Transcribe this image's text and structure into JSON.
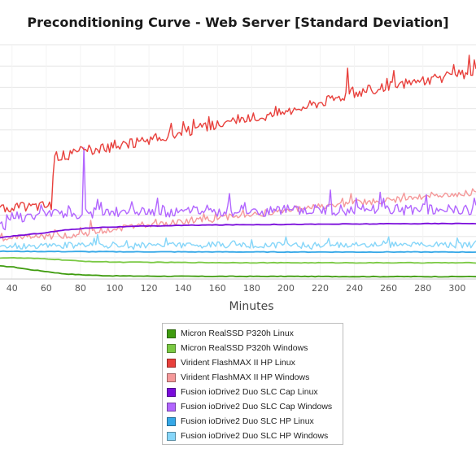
{
  "chart_data": {
    "type": "line",
    "title": "Preconditioning Curve - Web Server [Standard Deviation]",
    "xlabel": "Minutes",
    "ylabel": "",
    "xlim": [
      33,
      311
    ],
    "ylim": [
      0,
      100
    ],
    "x_ticks": [
      40,
      60,
      80,
      100,
      120,
      140,
      160,
      180,
      200,
      220,
      240,
      260,
      280,
      300
    ],
    "grid": true,
    "legend_position": "bottom",
    "series": [
      {
        "name": "Micron RealSSD P320h Linux",
        "color": "#3f9c0f",
        "style": "smooth",
        "x": [
          33,
          40,
          50,
          60,
          70,
          80,
          90,
          100,
          120,
          150,
          200,
          250,
          311
        ],
        "y": [
          5.5,
          5.2,
          4.0,
          3.2,
          2.2,
          1.8,
          1.5,
          1.3,
          1.2,
          1.1,
          1.1,
          1.0,
          1.0
        ]
      },
      {
        "name": "Micron RealSSD P320h Windows",
        "color": "#7ac943",
        "style": "smooth",
        "x": [
          33,
          40,
          60,
          80,
          100,
          150,
          200,
          250,
          311
        ],
        "y": [
          9.0,
          9.0,
          8.6,
          7.6,
          7.2,
          7.0,
          6.9,
          6.9,
          6.9
        ]
      },
      {
        "name": "Virident FlashMAX II HP Linux",
        "color": "#e8403c",
        "style": "noisy",
        "x": [
          33,
          40,
          50,
          60,
          63,
          65,
          70,
          80,
          90,
          100,
          120,
          140,
          160,
          180,
          200,
          220,
          240,
          260,
          280,
          300,
          311
        ],
        "y": [
          30.5,
          30.5,
          31.0,
          31.5,
          31.5,
          52.0,
          53.0,
          54.5,
          55.5,
          56.5,
          59.5,
          62.5,
          66.0,
          68.5,
          71.5,
          75.5,
          79.5,
          82.0,
          84.5,
          87.0,
          87.5
        ],
        "spikes": [
          [
            64,
            44.0
          ],
          [
            80,
            56.5
          ],
          [
            236,
            90.0
          ],
          [
            263,
            89.0
          ],
          [
            298,
            91.5
          ],
          [
            307,
            95.5
          ],
          [
            310,
            93.5
          ]
        ]
      },
      {
        "name": "Virident FlashMAX II HP Windows",
        "color": "#f5999a",
        "style": "noisy",
        "x": [
          33,
          60,
          80,
          100,
          120,
          140,
          160,
          180,
          200,
          220,
          240,
          260,
          280,
          300,
          311
        ],
        "y": [
          17.5,
          18.0,
          19.0,
          21.5,
          23.0,
          24.5,
          26.0,
          27.5,
          29.5,
          31.0,
          32.5,
          33.5,
          35.0,
          36.0,
          36.5
        ],
        "spikes": [
          [
            65,
            21.0
          ],
          [
            80,
            22.0
          ],
          [
            86,
            25.0
          ],
          [
            175,
            29.5
          ],
          [
            238,
            36.5
          ],
          [
            285,
            37.0
          ],
          [
            309,
            38.5
          ]
        ]
      },
      {
        "name": "Fusion ioDrive2 Duo SLC Cap Linux",
        "color": "#7a0cdb",
        "style": "smooth",
        "x": [
          33,
          40,
          50,
          60,
          70,
          80,
          90,
          100,
          120,
          150,
          200,
          250,
          311
        ],
        "y": [
          17.5,
          18.3,
          19.0,
          19.8,
          20.8,
          21.5,
          22.0,
          22.2,
          22.6,
          23.0,
          23.3,
          23.5,
          23.7
        ]
      },
      {
        "name": "Fusion ioDrive2 Duo SLC Cap Windows",
        "color": "#b266ff",
        "style": "noisy",
        "x": [
          33,
          50,
          80,
          100,
          150,
          200,
          250,
          311
        ],
        "y": [
          26.0,
          27.0,
          28.0,
          28.5,
          29.0,
          29.3,
          29.5,
          29.8
        ],
        "spikes": [
          [
            35,
            21.5
          ],
          [
            36,
            21.0
          ],
          [
            82,
            56.0
          ],
          [
            90,
            34.0
          ],
          [
            110,
            33.0
          ],
          [
            125,
            34.5
          ],
          [
            167,
            36.5
          ],
          [
            226,
            38.0
          ],
          [
            255,
            37.0
          ],
          [
            282,
            36.0
          ],
          [
            310,
            34.5
          ]
        ]
      },
      {
        "name": "Fusion ioDrive2 Duo SLC HP Linux",
        "color": "#36a8e7",
        "style": "smooth",
        "x": [
          33,
          100,
          200,
          311
        ],
        "y": [
          11.8,
          11.6,
          11.5,
          11.5
        ]
      },
      {
        "name": "Fusion ioDrive2 Duo SLC HP Windows",
        "color": "#86d6f9",
        "style": "noisy",
        "x": [
          33,
          100,
          200,
          311
        ],
        "y": [
          14.0,
          14.5,
          14.5,
          14.5
        ],
        "spikes": [
          [
            90,
            19.0
          ],
          [
            130,
            17.5
          ],
          [
            200,
            18.0
          ],
          [
            260,
            18.0
          ],
          [
            300,
            17.5
          ]
        ]
      }
    ]
  }
}
